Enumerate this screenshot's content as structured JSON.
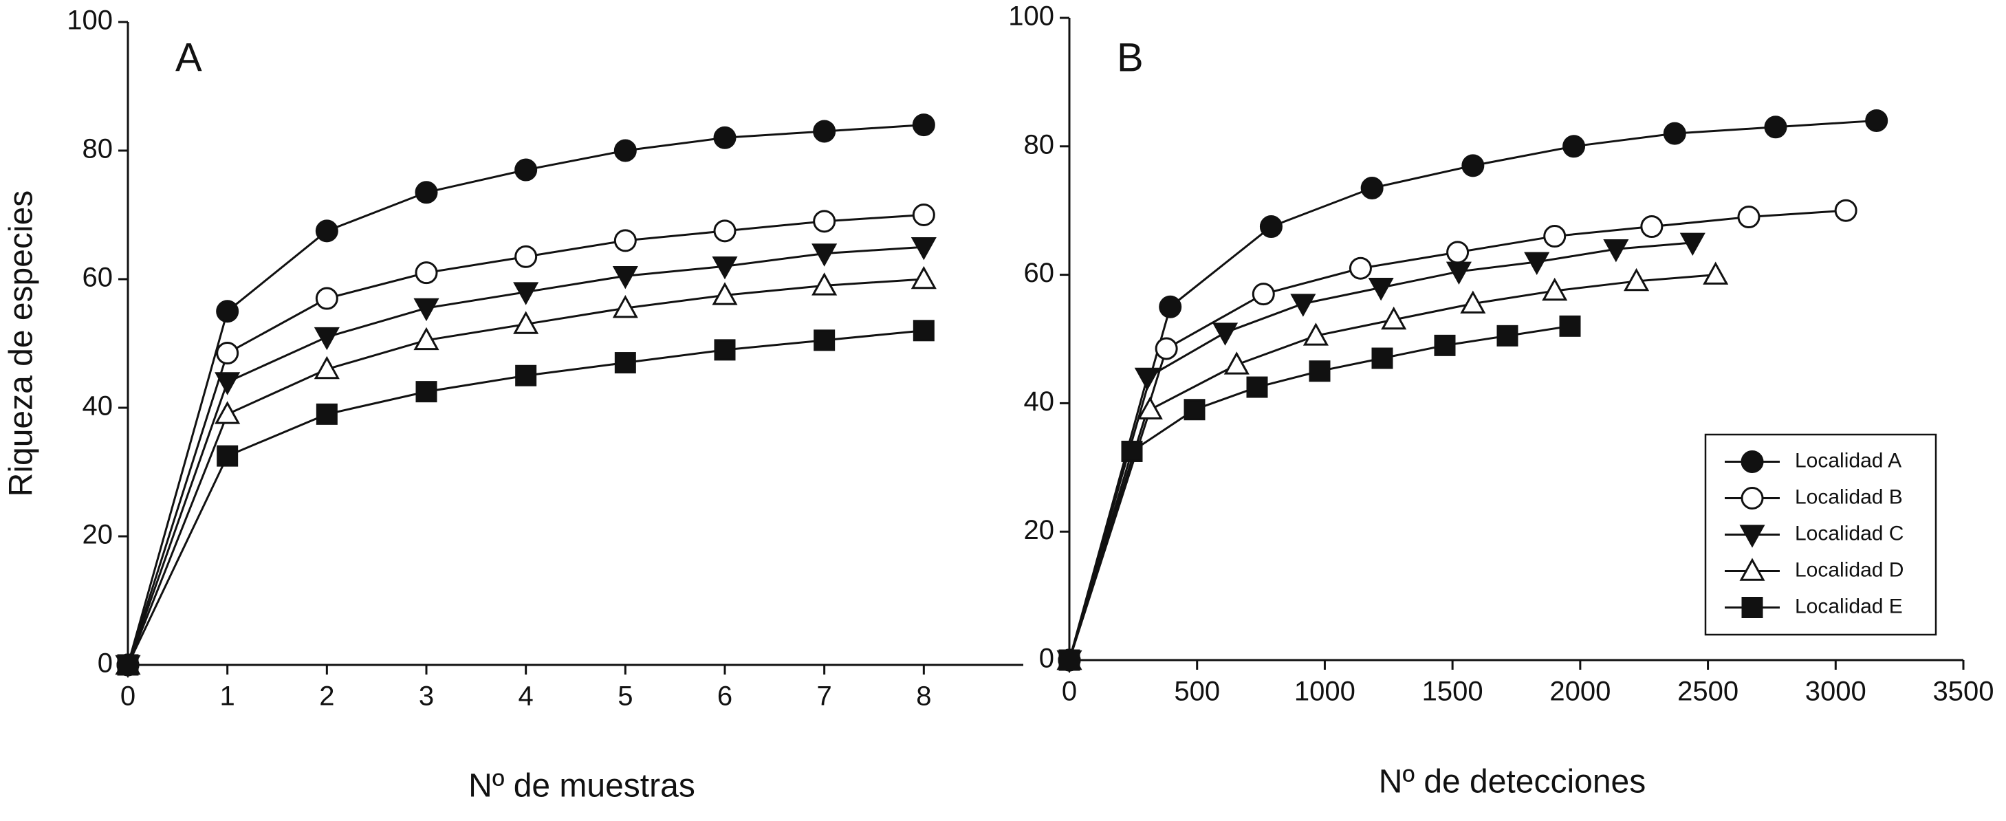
{
  "chart_data": [
    {
      "type": "line",
      "title": "A",
      "y_label": "Riqueza de especies",
      "x_label": "Nº de muestras",
      "x": [
        0,
        1,
        2,
        3,
        4,
        5,
        6,
        7,
        8
      ],
      "xlim": [
        0,
        9
      ],
      "xticks": [
        0,
        1,
        2,
        3,
        4,
        5,
        6,
        7,
        8
      ],
      "ylim": [
        0,
        100
      ],
      "yticks": [
        0,
        20,
        40,
        60,
        80,
        100
      ],
      "series": [
        {
          "marker": "circle-filled",
          "color": "#111111",
          "values": [
            0,
            55,
            67.5,
            73.5,
            77,
            80,
            82,
            83,
            84
          ]
        },
        {
          "marker": "circle-open",
          "color": "#111111",
          "values": [
            0,
            48.5,
            57,
            61,
            63.5,
            66,
            67.5,
            69,
            70
          ]
        },
        {
          "marker": "triangle-down-filled",
          "color": "#111111",
          "values": [
            0,
            44,
            51,
            55.5,
            58,
            60.5,
            62,
            64,
            65
          ]
        },
        {
          "marker": "triangle-up-open",
          "color": "#111111",
          "values": [
            0,
            39,
            46,
            50.5,
            53,
            55.5,
            57.5,
            59,
            60
          ]
        },
        {
          "marker": "square-filled",
          "color": "#111111",
          "values": [
            0,
            32.5,
            39,
            42.5,
            45,
            47,
            49,
            50.5,
            52
          ]
        }
      ]
    },
    {
      "type": "line",
      "title": "B",
      "x_label": "Nº de detecciones",
      "xlim": [
        0,
        3500
      ],
      "xticks": [
        0,
        500,
        1000,
        1500,
        2000,
        2500,
        3000,
        3500
      ],
      "ylim": [
        0,
        100
      ],
      "yticks": [
        0,
        20,
        40,
        60,
        80,
        100
      ],
      "legend": "lower right",
      "series": [
        {
          "name": "Localidad A",
          "marker": "circle-filled",
          "color": "#111111",
          "x": [
            0,
            395,
            790,
            1185,
            1580,
            1975,
            2370,
            2765,
            3160
          ],
          "values": [
            0,
            55,
            67.5,
            73.5,
            77,
            80,
            82,
            83,
            84
          ]
        },
        {
          "name": "Localidad B",
          "marker": "circle-open",
          "color": "#111111",
          "x": [
            0,
            380,
            760,
            1140,
            1520,
            1900,
            2280,
            2660,
            3040
          ],
          "values": [
            0,
            48.5,
            57,
            61,
            63.5,
            66,
            67.5,
            69,
            70
          ]
        },
        {
          "name": "Localidad C",
          "marker": "triangle-down-filled",
          "color": "#111111",
          "x": [
            0,
            305,
            610,
            915,
            1220,
            1525,
            1830,
            2140,
            2440
          ],
          "values": [
            0,
            44,
            51,
            55.5,
            58,
            60.5,
            62,
            64,
            65
          ]
        },
        {
          "name": "Localidad D",
          "marker": "triangle-up-open",
          "color": "#111111",
          "x": [
            0,
            316,
            655,
            965,
            1270,
            1580,
            1900,
            2220,
            2530
          ],
          "values": [
            0,
            39,
            46,
            50.5,
            53,
            55.5,
            57.5,
            59,
            60
          ]
        },
        {
          "name": "Localidad E",
          "marker": "square-filled",
          "color": "#111111",
          "x": [
            0,
            245,
            490,
            735,
            980,
            1225,
            1470,
            1715,
            1960
          ],
          "values": [
            0,
            32.5,
            39,
            42.5,
            45,
            47,
            49,
            50.5,
            52
          ]
        }
      ]
    }
  ]
}
